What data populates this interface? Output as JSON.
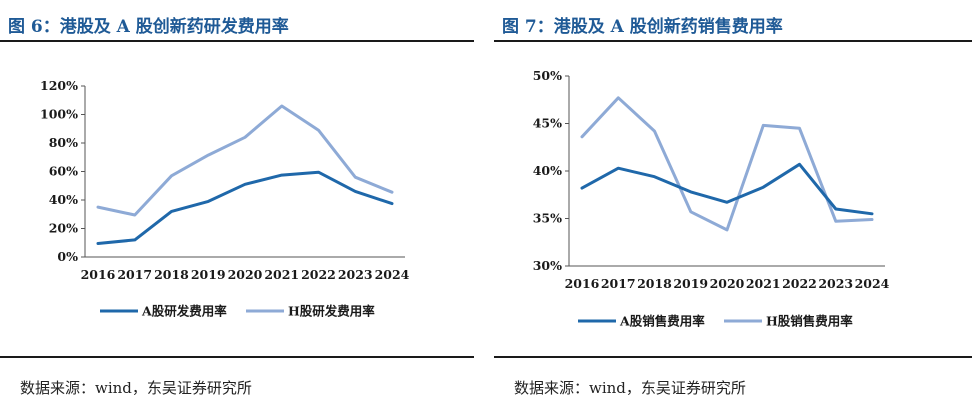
{
  "charts": [
    {
      "title": "图 6：港股及 A 股创新药研发费用率",
      "source": "数据来源：wind，东吴证券研究所"
    },
    {
      "title": "图 7：港股及 A 股创新药销售费用率",
      "source": "数据来源：wind，东吴证券研究所"
    }
  ],
  "colors": {
    "a_series": "#1f68aa",
    "h_series": "#8eaad6",
    "title": "#1f5a96"
  },
  "chart_data": [
    {
      "type": "line",
      "title": "图 6：港股及 A 股创新药研发费用率",
      "x": [
        "2016",
        "2017",
        "2018",
        "2019",
        "2020",
        "2021",
        "2022",
        "2023",
        "2024"
      ],
      "y_ticks": [
        "0%",
        "20%",
        "40%",
        "60%",
        "80%",
        "100%",
        "120%"
      ],
      "ylim": [
        0,
        120
      ],
      "grid": false,
      "legend_position": "bottom",
      "series": [
        {
          "name": "A股研发费用率",
          "color": "#1f68aa",
          "values": [
            9.5,
            12,
            32,
            39,
            51,
            57.5,
            59.5,
            46,
            37.5
          ]
        },
        {
          "name": "H股研发费用率",
          "color": "#8eaad6",
          "values": [
            35,
            29.5,
            57,
            71.5,
            84,
            106,
            89,
            56,
            45.5
          ]
        }
      ]
    },
    {
      "type": "line",
      "title": "图 7：港股及 A 股创新药销售费用率",
      "x": [
        "2016",
        "2017",
        "2018",
        "2019",
        "2020",
        "2021",
        "2022",
        "2023",
        "2024"
      ],
      "y_ticks": [
        "30%",
        "35%",
        "40%",
        "45%",
        "50%"
      ],
      "ylim": [
        30,
        50
      ],
      "grid": false,
      "legend_position": "bottom",
      "series": [
        {
          "name": "A股销售费用率",
          "color": "#1f68aa",
          "values": [
            38.2,
            40.3,
            39.4,
            37.8,
            36.7,
            38.3,
            40.7,
            36,
            35.5
          ]
        },
        {
          "name": "H股销售费用率",
          "color": "#8eaad6",
          "values": [
            43.6,
            47.7,
            44.2,
            35.7,
            33.8,
            44.8,
            44.5,
            34.7,
            34.9
          ]
        }
      ]
    }
  ]
}
